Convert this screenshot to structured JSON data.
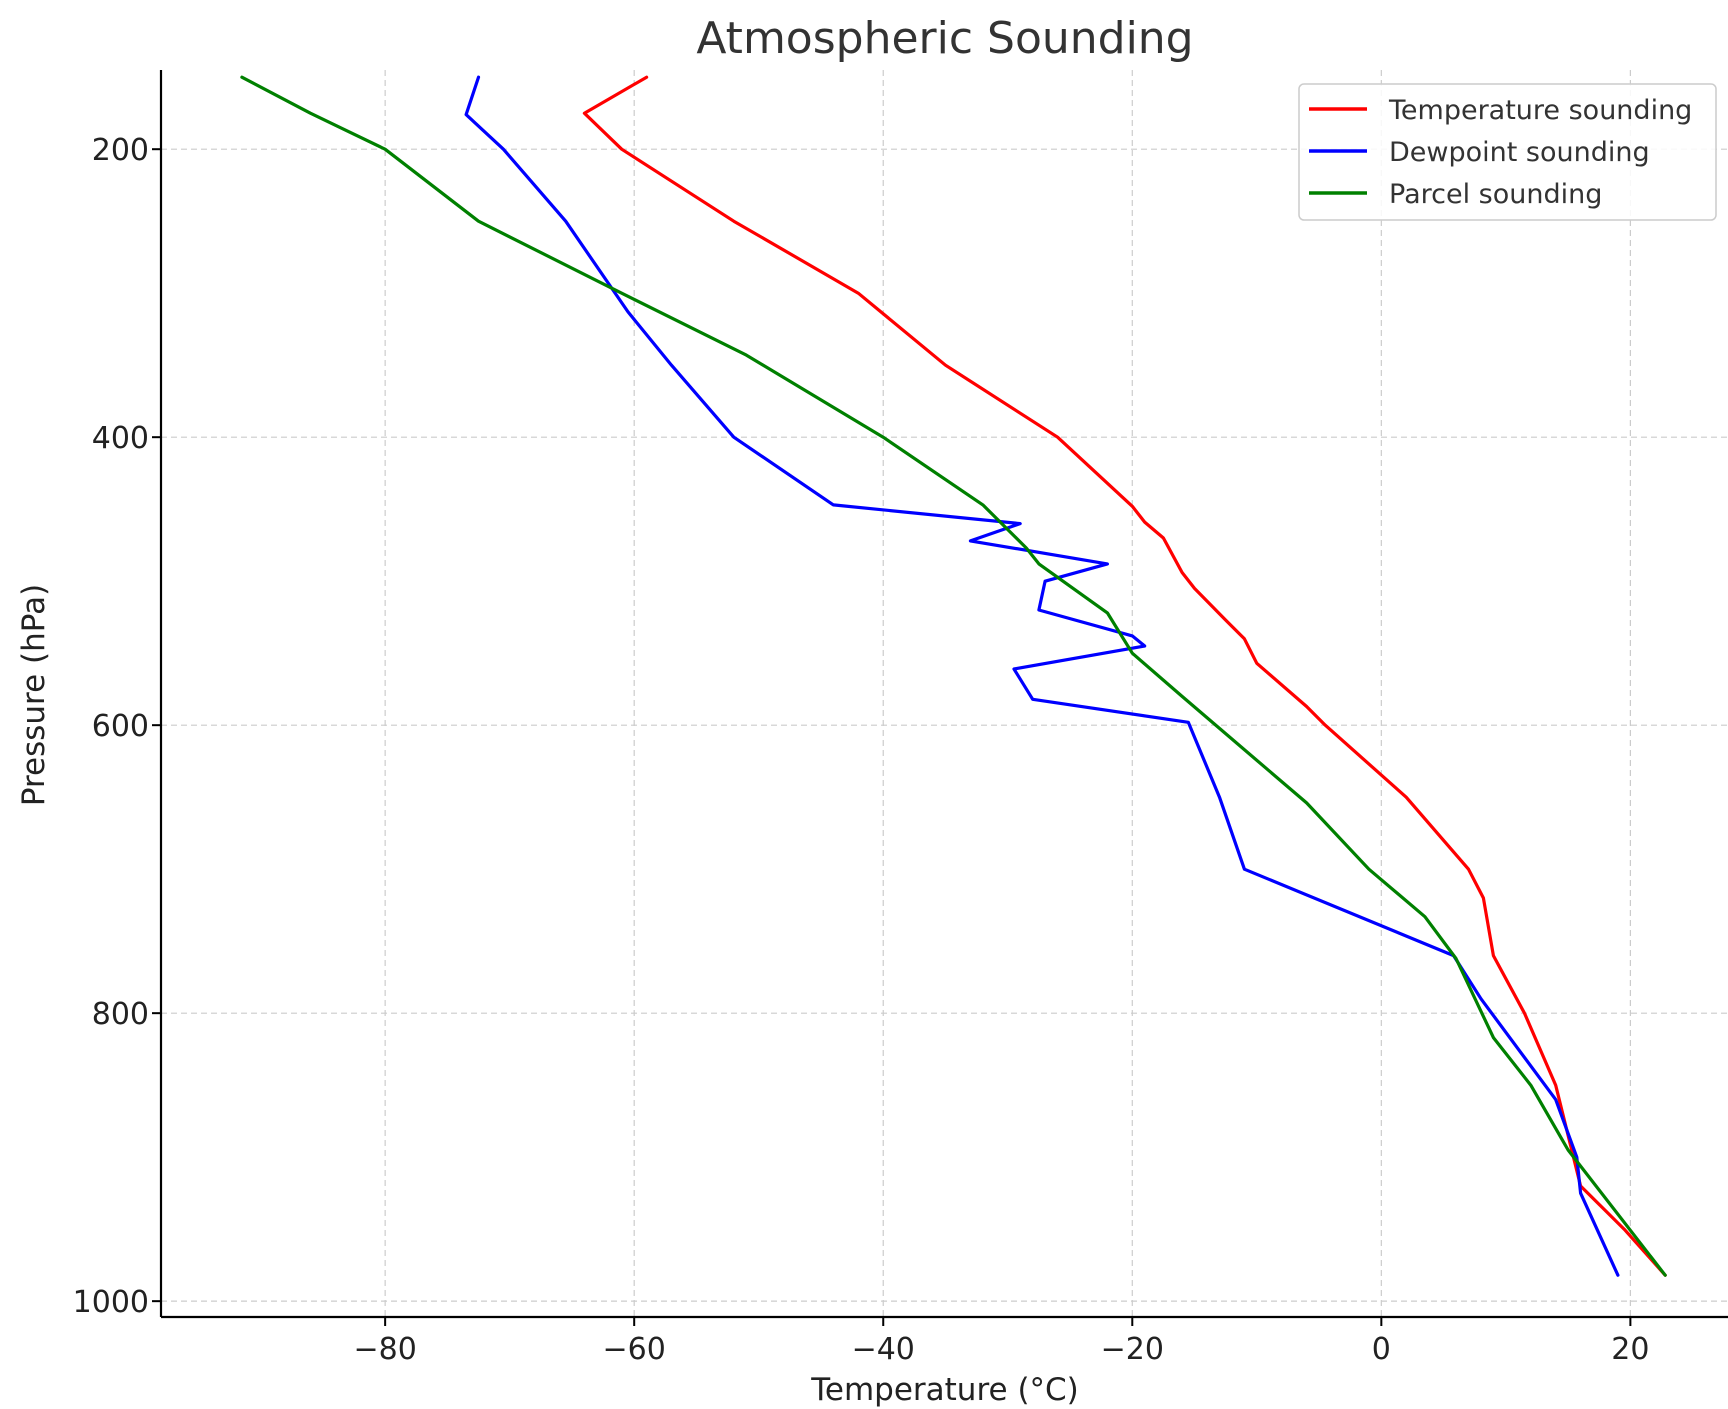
{
  "chart_data": {
    "type": "line",
    "title": "Atmospheric Sounding",
    "xlabel": "Temperature (°C)",
    "ylabel": "Pressure (hPa)",
    "xlim": [
      -98,
      28
    ],
    "ylim": [
      1011,
      145
    ],
    "y_inverted": true,
    "xticks": [
      -80,
      -60,
      -40,
      -20,
      0,
      20
    ],
    "xtick_labels": [
      "−80",
      "−60",
      "−40",
      "−20",
      "0",
      "20"
    ],
    "yticks": [
      200,
      400,
      600,
      800,
      1000
    ],
    "ytick_labels": [
      "200",
      "400",
      "600",
      "800",
      "1000"
    ],
    "grid": true,
    "legend": {
      "placement": "top-right"
    },
    "series": [
      {
        "name": "Temperature sounding",
        "color": "#ff0000",
        "points": [
          [
            22.8,
            982
          ],
          [
            19.5,
            950
          ],
          [
            16,
            920
          ],
          [
            14,
            850
          ],
          [
            11.5,
            800
          ],
          [
            9,
            760
          ],
          [
            8.2,
            720
          ],
          [
            7,
            700
          ],
          [
            2,
            650
          ],
          [
            -4.5,
            600
          ],
          [
            -6,
            587
          ],
          [
            -10,
            557
          ],
          [
            -11,
            540
          ],
          [
            -12.5,
            527
          ],
          [
            -15,
            505
          ],
          [
            -16,
            494
          ],
          [
            -17.5,
            470
          ],
          [
            -19,
            459
          ],
          [
            -20,
            448
          ],
          [
            -26,
            400
          ],
          [
            -35,
            350
          ],
          [
            -42,
            300
          ],
          [
            -52,
            250
          ],
          [
            -61,
            200
          ],
          [
            -64,
            175
          ],
          [
            -59,
            150
          ]
        ]
      },
      {
        "name": "Dewpoint sounding",
        "color": "#0000ff",
        "points": [
          [
            19,
            982
          ],
          [
            16,
            925
          ],
          [
            15.7,
            900
          ],
          [
            14,
            860
          ],
          [
            8,
            790
          ],
          [
            5.8,
            760
          ],
          [
            -11,
            700
          ],
          [
            -13,
            650
          ],
          [
            -15.5,
            598
          ],
          [
            -28,
            582
          ],
          [
            -29.5,
            561
          ],
          [
            -19,
            545
          ],
          [
            -20,
            538
          ],
          [
            -27.5,
            520
          ],
          [
            -27,
            500
          ],
          [
            -22,
            488
          ],
          [
            -33,
            472
          ],
          [
            -29,
            460
          ],
          [
            -44,
            447
          ],
          [
            -52,
            400
          ],
          [
            -57,
            350
          ],
          [
            -60.5,
            313
          ],
          [
            -65.5,
            250
          ],
          [
            -70.5,
            200
          ],
          [
            -73.5,
            176
          ],
          [
            -72.5,
            150
          ]
        ]
      },
      {
        "name": "Parcel sounding",
        "color": "#008000",
        "points": [
          [
            22.8,
            982
          ],
          [
            15,
            895
          ],
          [
            12,
            850
          ],
          [
            9,
            817
          ],
          [
            6,
            762
          ],
          [
            3.5,
            733
          ],
          [
            -1,
            700
          ],
          [
            -6,
            654
          ],
          [
            -16,
            580
          ],
          [
            -20,
            550
          ],
          [
            -22,
            522
          ],
          [
            -27.5,
            488
          ],
          [
            -28.5,
            477
          ],
          [
            -32,
            447
          ],
          [
            -40,
            400
          ],
          [
            -51,
            343
          ],
          [
            -61,
            300
          ],
          [
            -72.5,
            250
          ],
          [
            -80,
            200
          ],
          [
            -86,
            175
          ],
          [
            -91.5,
            150
          ]
        ]
      }
    ]
  }
}
